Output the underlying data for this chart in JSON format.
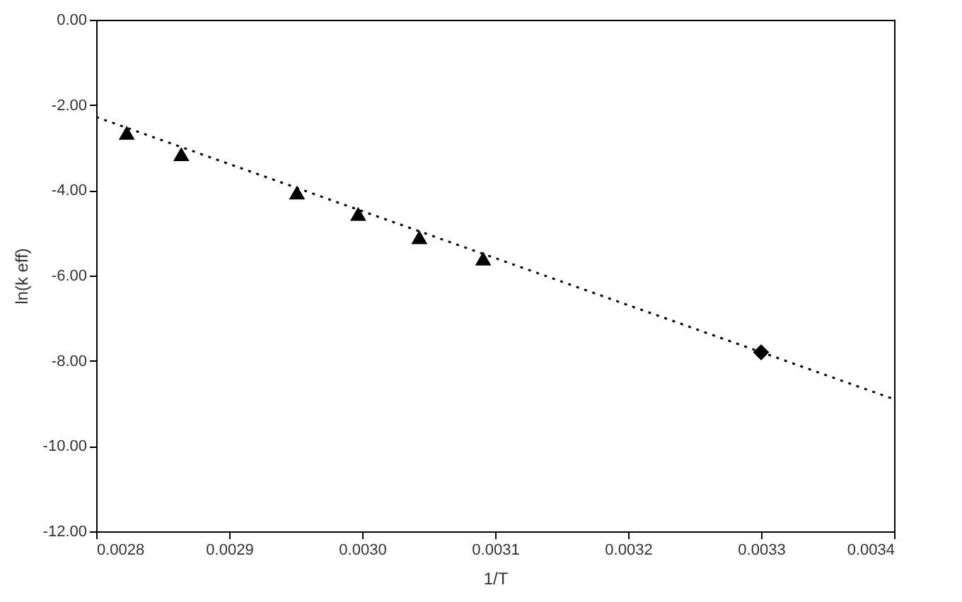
{
  "chart_data": {
    "type": "scatter",
    "xlabel": "1/T",
    "ylabel": "ln(k eff)",
    "xlim": [
      0.0028,
      0.0034
    ],
    "ylim": [
      -12,
      0
    ],
    "xticks": [
      {
        "value": 0.0028,
        "label": "0.0028"
      },
      {
        "value": 0.0029,
        "label": "0.0029"
      },
      {
        "value": 0.003,
        "label": "0.0030"
      },
      {
        "value": 0.0031,
        "label": "0.0031"
      },
      {
        "value": 0.0032,
        "label": "0.0032"
      },
      {
        "value": 0.0033,
        "label": "0.0033"
      },
      {
        "value": 0.0034,
        "label": "0.0034"
      }
    ],
    "yticks": [
      {
        "value": -12,
        "label": "-12.00"
      },
      {
        "value": -10,
        "label": "-10.00"
      },
      {
        "value": -8,
        "label": "-8.00"
      },
      {
        "value": -6,
        "label": "-6.00"
      },
      {
        "value": -4,
        "label": "-4.00"
      },
      {
        "value": -2,
        "label": "-2.00"
      },
      {
        "value": 0,
        "label": "0.00"
      }
    ],
    "grid": false,
    "series": [
      {
        "type": "line",
        "color": "#000000",
        "line_style": "dotted",
        "marker": "none",
        "x": [
          0.0028,
          0.0034
        ],
        "values": [
          -2.28,
          -8.9
        ]
      },
      {
        "type": "scatter",
        "color": "#000000",
        "marker": "triangle",
        "x": [
          0.002823,
          0.002864,
          0.002951,
          0.002997,
          0.003043,
          0.003091
        ],
        "values": [
          -2.65,
          -3.15,
          -4.05,
          -4.55,
          -5.1,
          -5.6
        ]
      },
      {
        "type": "scatter",
        "color": "#000000",
        "marker": "diamond",
        "x": [
          0.0033
        ],
        "values": [
          -7.8
        ]
      }
    ]
  }
}
